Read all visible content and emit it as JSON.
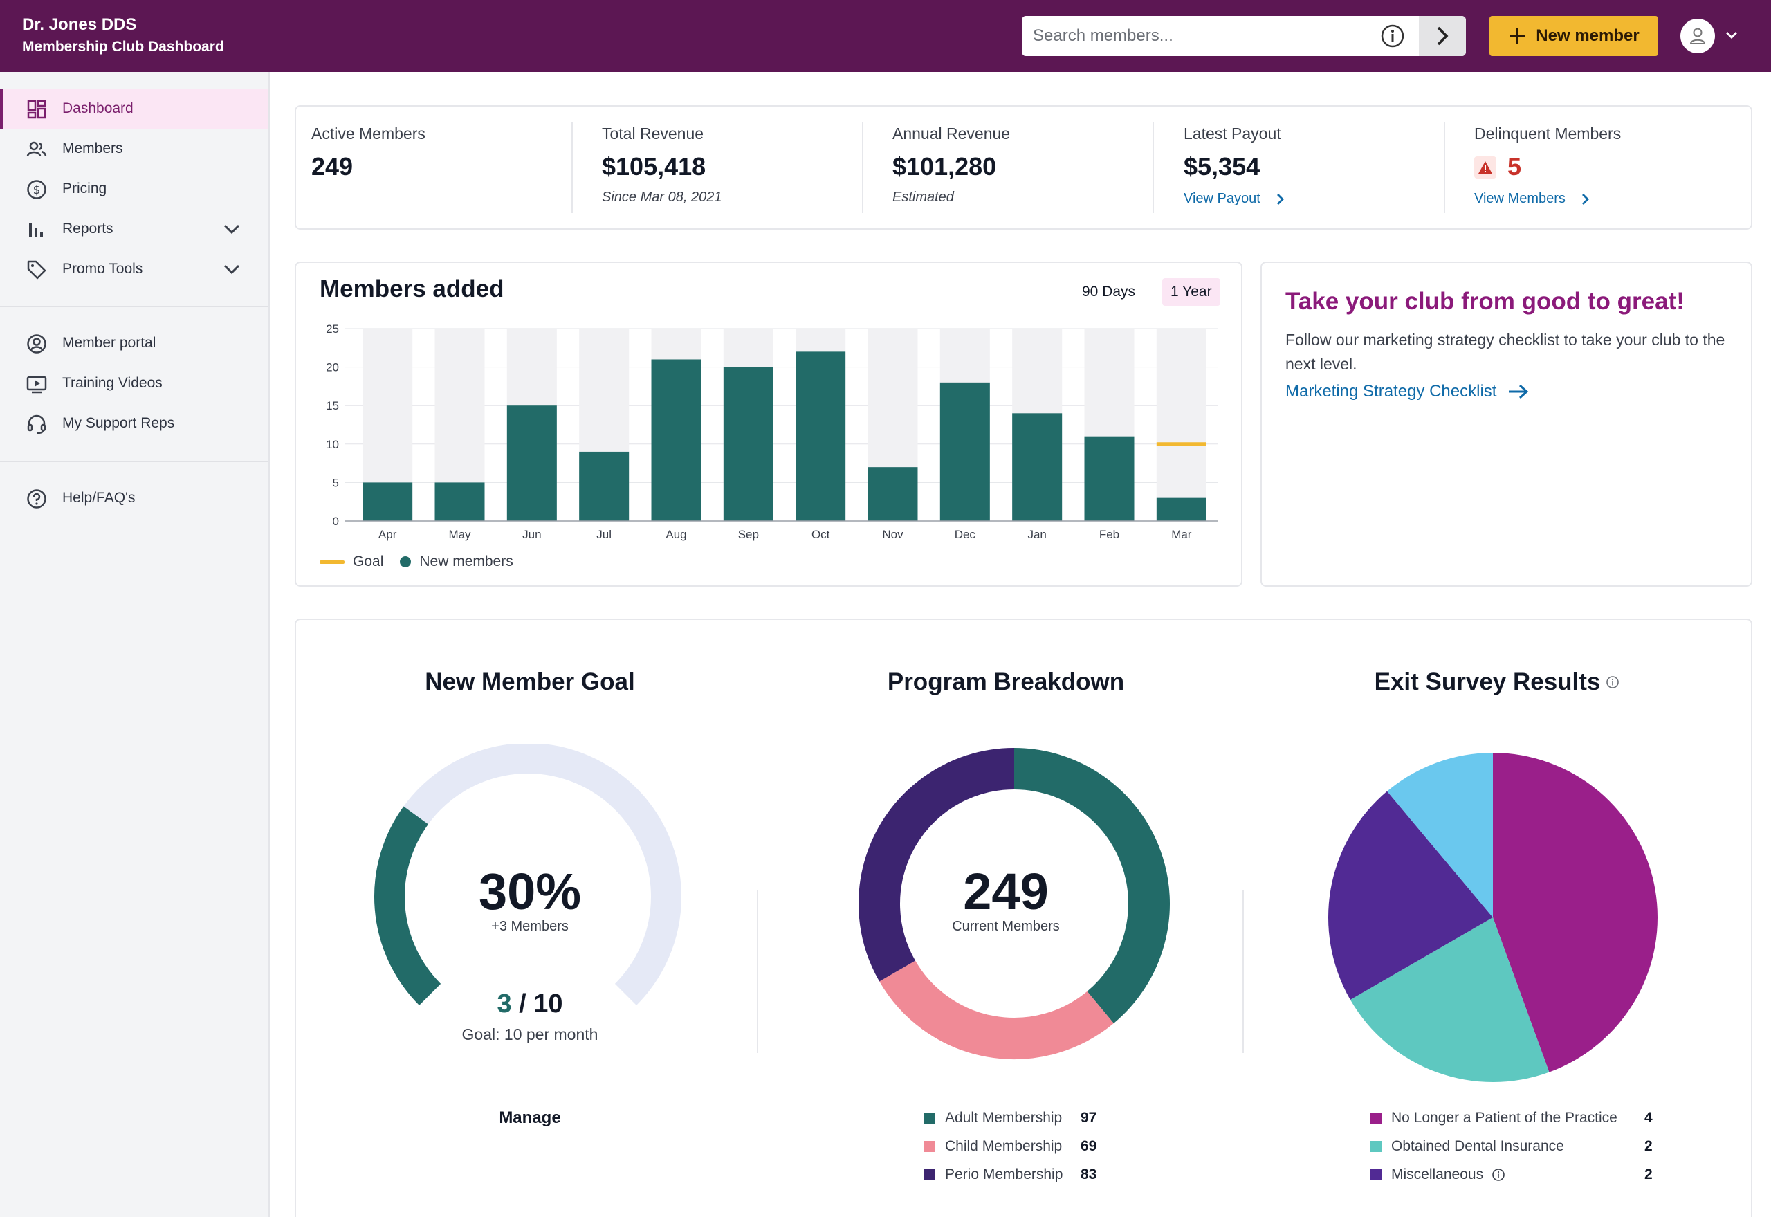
{
  "header": {
    "org_name": "Dr. Jones DDS",
    "subtitle": "Membership Club Dashboard",
    "search_placeholder": "Search members...",
    "new_member_label": "New member"
  },
  "sidebar": {
    "items": [
      {
        "label": "Dashboard",
        "icon": "dashboard-icon",
        "active": true
      },
      {
        "label": "Members",
        "icon": "members-icon"
      },
      {
        "label": "Pricing",
        "icon": "dollar-icon"
      },
      {
        "label": "Reports",
        "icon": "bar-chart-icon",
        "expandable": true
      },
      {
        "label": "Promo Tools",
        "icon": "tag-icon",
        "expandable": true
      },
      {
        "label": "Member portal",
        "icon": "user-circle-icon"
      },
      {
        "label": "Training Videos",
        "icon": "video-icon"
      },
      {
        "label": "My Support Reps",
        "icon": "headset-icon"
      },
      {
        "label": "Help/FAQ's",
        "icon": "help-icon"
      }
    ]
  },
  "stats": {
    "active": {
      "label": "Active Members",
      "value": "249"
    },
    "total_revenue": {
      "label": "Total Revenue",
      "value": "$105,418",
      "sub": "Since Mar 08, 2021"
    },
    "annual_revenue": {
      "label": "Annual Revenue",
      "value": "$101,280",
      "sub": "Estimated"
    },
    "payout": {
      "label": "Latest Payout",
      "value": "$5,354",
      "link": "View Payout"
    },
    "delinquent": {
      "label": "Delinquent Members",
      "value": "5",
      "link": "View Members"
    }
  },
  "members_chart": {
    "title": "Members added",
    "ranges": [
      "90 Days",
      "1 Year"
    ],
    "selected_range": "1 Year",
    "legend_goal": "Goal",
    "legend_new": "New members"
  },
  "chart_data": {
    "type": "bar",
    "categories": [
      "Apr",
      "May",
      "Jun",
      "Jul",
      "Aug",
      "Sep",
      "Oct",
      "Nov",
      "Dec",
      "Jan",
      "Feb",
      "Mar"
    ],
    "series": [
      {
        "name": "New members",
        "values": [
          5,
          5,
          15,
          9,
          21,
          20,
          22,
          7,
          18,
          14,
          11,
          3
        ]
      }
    ],
    "goal": {
      "name": "Goal",
      "category": "Mar",
      "value": 10
    },
    "ylim": [
      0,
      25
    ],
    "yticks": [
      0,
      5,
      10,
      15,
      20,
      25
    ],
    "colors": {
      "bar": "#226b68",
      "track": "#f1f1f3",
      "goal": "#f2b830"
    }
  },
  "promo": {
    "title": "Take your club from good to great!",
    "text": "Follow our marketing strategy checklist to take your club to the next level.",
    "link": "Marketing Strategy Checklist"
  },
  "goal_section": {
    "title": "New Member Goal",
    "percent": "30%",
    "percent_value": 0.3,
    "plus": "+3 Members",
    "current": "3",
    "target": "/ 10",
    "goal_text": "Goal: 10 per month",
    "manage": "Manage"
  },
  "program_section": {
    "title": "Program Breakdown",
    "total": "249",
    "total_label": "Current Members",
    "items": [
      {
        "label": "Adult Membership",
        "value": "97",
        "count": 97,
        "color": "#226b68"
      },
      {
        "label": "Child Membership",
        "value": "69",
        "count": 69,
        "color": "#f08a96"
      },
      {
        "label": "Perio Membership",
        "value": "83",
        "count": 83,
        "color": "#3c2470"
      }
    ]
  },
  "exit_section": {
    "title": "Exit Survey Results",
    "items": [
      {
        "label": "No Longer a Patient of the Practice",
        "value": "4",
        "count": 4,
        "color": "#9a1f8a"
      },
      {
        "label": "Obtained Dental Insurance",
        "value": "2",
        "count": 2,
        "color": "#5ec8c0"
      },
      {
        "label": "Miscellaneous",
        "value": "2",
        "count": 2,
        "color": "#512a94",
        "info": true
      }
    ],
    "extra_slice_color": "#6ac8ee"
  }
}
